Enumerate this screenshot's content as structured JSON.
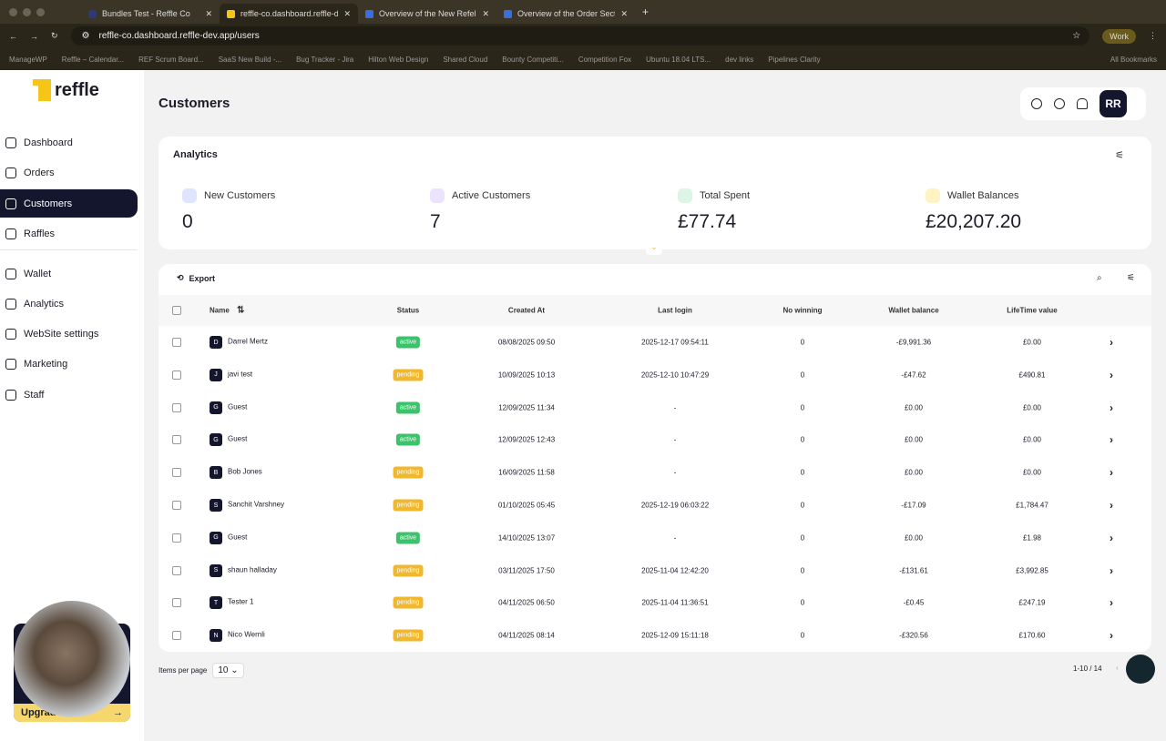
{
  "browser": {
    "tabs": [
      "Bundles Test - Reffle Co",
      "reffle-co.dashboard.reffle-de",
      "Overview of the New Refel Pl",
      "Overview of the Order Sectio"
    ],
    "url": "reffle-co.dashboard.reffle-dev.app/users",
    "profile": "Work",
    "bookmarks": [
      "ManageWP",
      "Reffle – Calendar...",
      "REF Scrum Board...",
      "SaaS New Build -...",
      "Bug Tracker - Jira",
      "Hilton Web Design",
      "Shared Cloud",
      "Bounty Competiti...",
      "Competition Fox",
      "Ubuntu 18.04 LTS...",
      "dev links",
      "Pipelines Clarity",
      "All Bookmarks"
    ]
  },
  "logo": "reffle",
  "sidebar": {
    "items": [
      "Dashboard",
      "Orders",
      "Customers",
      "Raffles",
      "Wallet",
      "Analytics",
      "WebSite settings",
      "Marketing",
      "Staff"
    ],
    "upgrade": "Upgrade"
  },
  "header": {
    "title": "Customers",
    "avatar": "RR"
  },
  "analytics": {
    "title": "Analytics",
    "stats": [
      {
        "label": "New Customers",
        "value": "0",
        "color": "#dfe4ff"
      },
      {
        "label": "Active Customers",
        "value": "7",
        "color": "#ece4ff"
      },
      {
        "label": "Total Spent",
        "value": "£77.74",
        "color": "#dcf5e6"
      },
      {
        "label": "Wallet Balances",
        "value": "£20,207.20",
        "color": "#fff3c4"
      }
    ]
  },
  "table": {
    "export": "Export",
    "columns": [
      "Name",
      "Status",
      "Created At",
      "Last login",
      "No winning",
      "Wallet balance",
      "LifeTime value"
    ],
    "rows": [
      {
        "initial": "D",
        "name": "Darrel Mertz",
        "status": "active",
        "created": "08/08/2025 09:50",
        "login": "2025-12-17 09:54:11",
        "wins": "0",
        "wallet": "-£9,991.36",
        "ltv": "£0.00"
      },
      {
        "initial": "J",
        "name": "javi test",
        "status": "pending",
        "created": "10/09/2025 10:13",
        "login": "2025-12-10 10:47:29",
        "wins": "0",
        "wallet": "-£47.62",
        "ltv": "£490.81"
      },
      {
        "initial": "G",
        "name": "Guest",
        "status": "active",
        "created": "12/09/2025 11:34",
        "login": "-",
        "wins": "0",
        "wallet": "£0.00",
        "ltv": "£0.00"
      },
      {
        "initial": "G",
        "name": "Guest",
        "status": "active",
        "created": "12/09/2025 12:43",
        "login": "-",
        "wins": "0",
        "wallet": "£0.00",
        "ltv": "£0.00"
      },
      {
        "initial": "B",
        "name": "Bob Jones",
        "status": "pending",
        "created": "16/09/2025 11:58",
        "login": "-",
        "wins": "0",
        "wallet": "£0.00",
        "ltv": "£0.00"
      },
      {
        "initial": "S",
        "name": "Sanchit Varshney",
        "status": "pending",
        "created": "01/10/2025 05:45",
        "login": "2025-12-19 06:03:22",
        "wins": "0",
        "wallet": "-£17.09",
        "ltv": "£1,784.47"
      },
      {
        "initial": "G",
        "name": "Guest",
        "status": "active",
        "created": "14/10/2025 13:07",
        "login": "-",
        "wins": "0",
        "wallet": "£0.00",
        "ltv": "£1.98"
      },
      {
        "initial": "S",
        "name": "shaun halladay",
        "status": "pending",
        "created": "03/11/2025 17:50",
        "login": "2025-11-04 12:42:20",
        "wins": "0",
        "wallet": "-£131.61",
        "ltv": "£3,992.85"
      },
      {
        "initial": "T",
        "name": "Tester 1",
        "status": "pending",
        "created": "04/11/2025 06:50",
        "login": "2025-11-04 11:36:51",
        "wins": "0",
        "wallet": "-£0.45",
        "ltv": "£247.19"
      },
      {
        "initial": "N",
        "name": "Nico Wernli",
        "status": "pending",
        "created": "04/11/2025 08:14",
        "login": "2025-12-09 15:11:18",
        "wins": "0",
        "wallet": "-£320.56",
        "ltv": "£170.60"
      }
    ]
  },
  "pagination": {
    "label": "Items per page",
    "per_page": "10",
    "range": "1-10 / 14"
  }
}
